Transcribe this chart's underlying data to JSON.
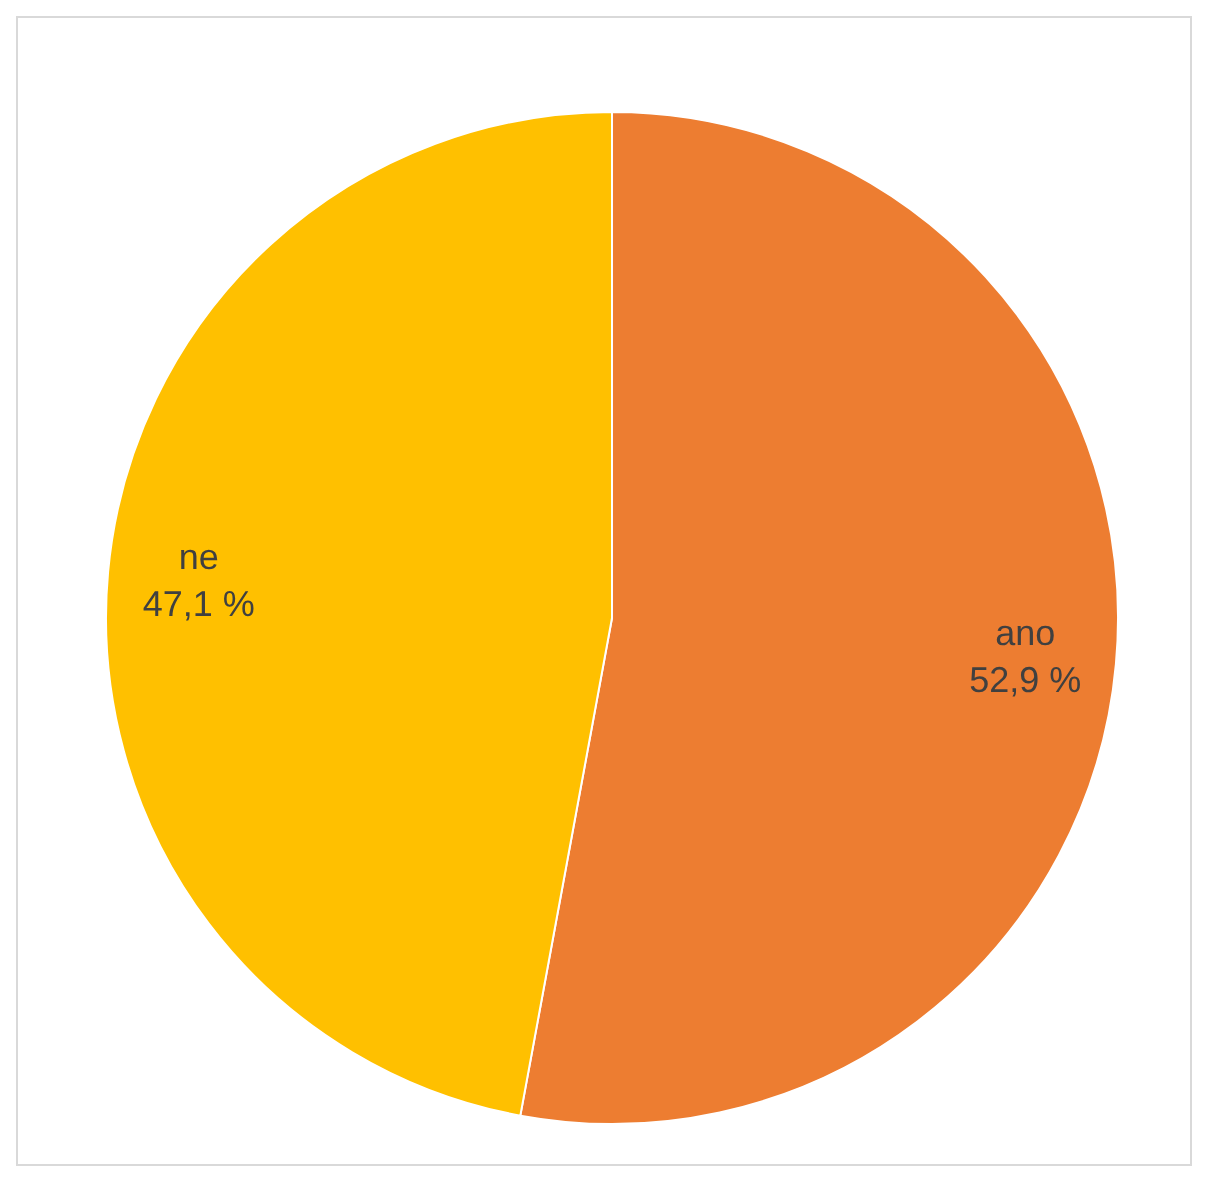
{
  "chart_data": {
    "type": "pie",
    "categories": [
      "ano",
      "ne"
    ],
    "values": [
      52.9,
      47.1
    ],
    "colors": [
      "#ed7d31",
      "#ffc000"
    ],
    "value_labels": [
      "52,9 %",
      "47,1 %"
    ]
  }
}
